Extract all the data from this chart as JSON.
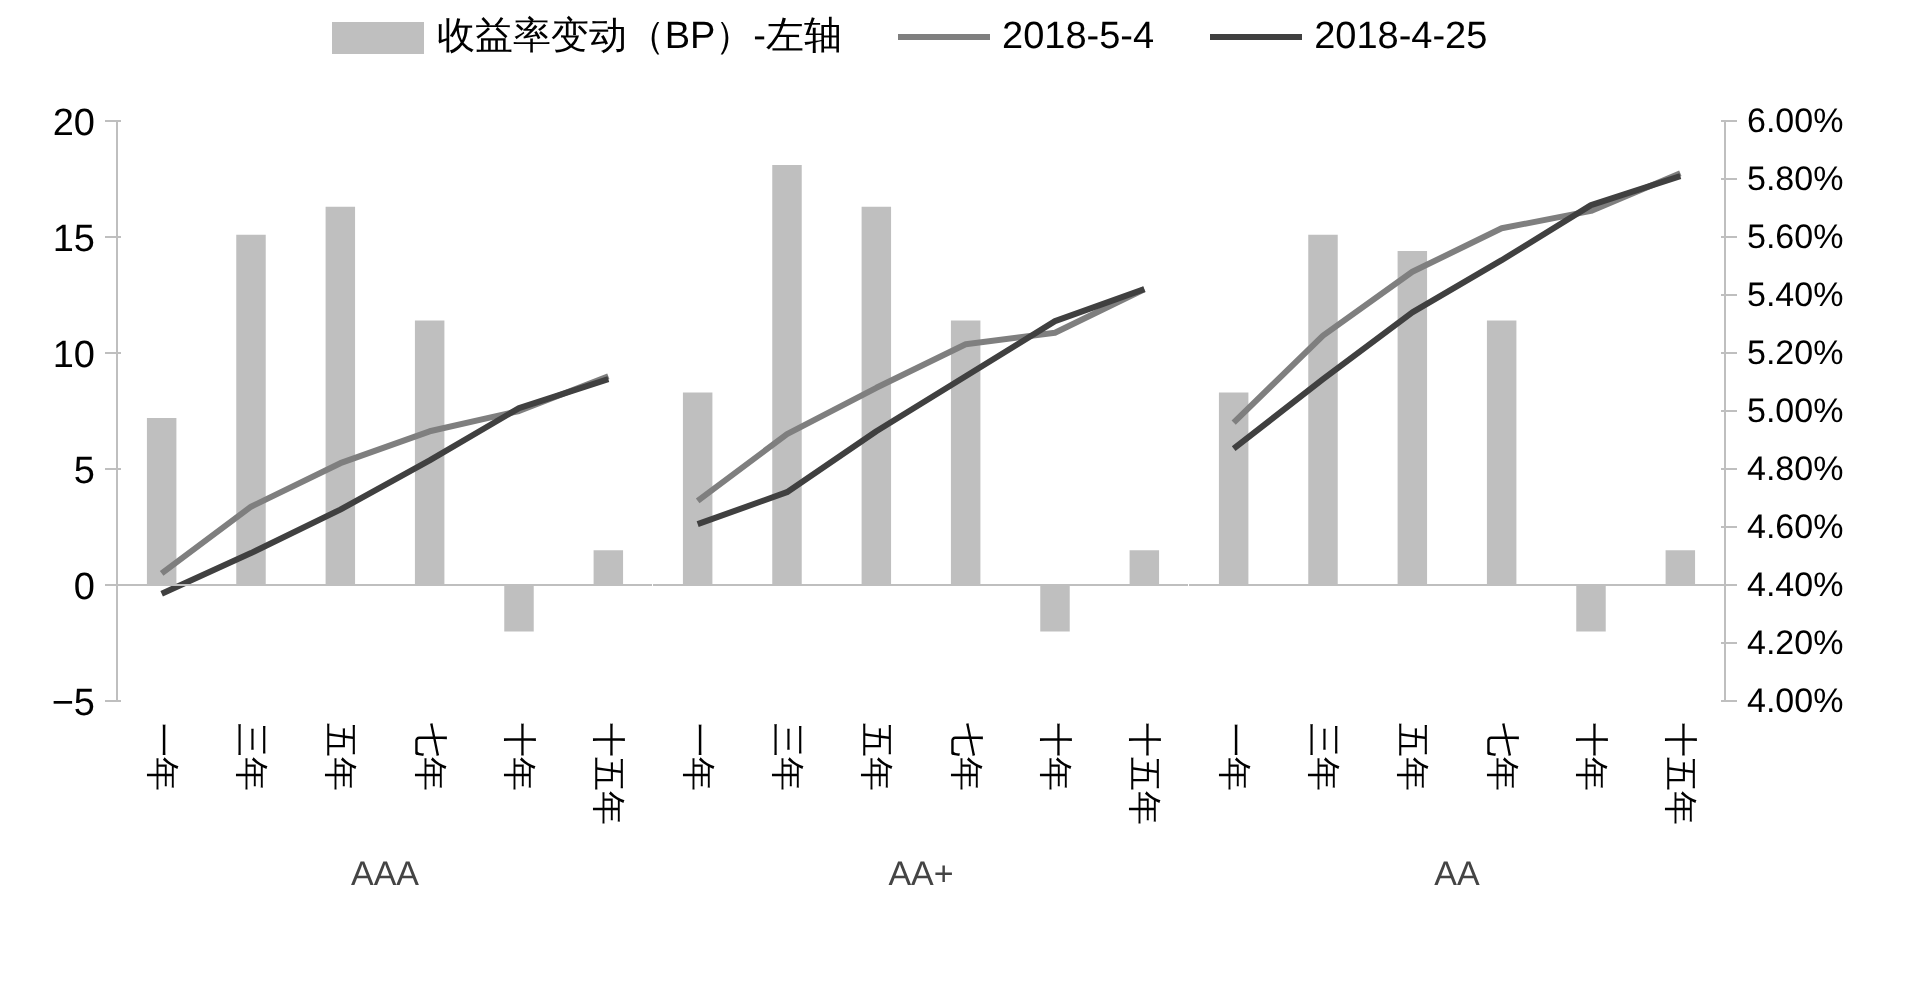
{
  "chart_data": [
    {
      "type": "bar",
      "categories": [
        "一年",
        "三年",
        "五年",
        "七年",
        "十年",
        "十五年"
      ],
      "xlabel": "AAA",
      "ylim": [
        -5,
        20
      ],
      "yticks": [
        -5,
        0,
        5,
        10,
        15,
        20
      ],
      "y2lim": [
        4,
        6
      ],
      "tick_labels": "y",
      "legend": false,
      "series": [
        {
          "color": "#bfbfbf",
          "values": [
            7.2,
            15.1,
            16.3,
            11.4,
            -2,
            1.5
          ]
        },
        {
          "type": "line",
          "axis": "y2",
          "color": "#7f7f7f",
          "values": [
            4.44,
            4.67,
            4.82,
            4.93,
            5.0,
            5.12
          ]
        },
        {
          "type": "line",
          "axis": "y2",
          "color": "#404040",
          "values": [
            4.37,
            4.51,
            4.66,
            4.83,
            5.01,
            5.11
          ]
        }
      ]
    },
    {
      "type": "bar",
      "categories": [
        "一年",
        "三年",
        "五年",
        "七年",
        "十年",
        "十五年"
      ],
      "xlabel": "AA+",
      "ylim": [
        -5,
        20
      ],
      "y2lim": [
        4,
        6
      ],
      "tick_labels": false,
      "legend": "top",
      "series": [
        {
          "name": "收益率变动（BP）-左轴",
          "color": "#bfbfbf",
          "values": [
            8.3,
            18.1,
            16.3,
            11.4,
            -2,
            1.5
          ]
        },
        {
          "type": "line",
          "name": "2018-5-4",
          "axis": "y2",
          "color": "#7f7f7f",
          "values": [
            4.69,
            4.92,
            5.08,
            5.23,
            5.27,
            5.42
          ]
        },
        {
          "type": "line",
          "name": "2018-4-25",
          "axis": "y2",
          "color": "#404040",
          "values": [
            4.61,
            4.72,
            4.93,
            5.12,
            5.31,
            5.42
          ]
        }
      ]
    },
    {
      "type": "bar",
      "categories": [
        "一年",
        "三年",
        "五年",
        "七年",
        "十年",
        "十五年"
      ],
      "xlabel": "AA",
      "ylim": [
        -5,
        20
      ],
      "y2lim": [
        4,
        6
      ],
      "y2ticks": [
        {
          "value": 4.0,
          "label": "4.00%"
        },
        {
          "value": 4.2,
          "label": "4.20%"
        },
        {
          "value": 4.4,
          "label": "4.40%"
        },
        {
          "value": 4.6,
          "label": "4.60%"
        },
        {
          "value": 4.8,
          "label": "4.80%"
        },
        {
          "value": 5.0,
          "label": "5.00%"
        },
        {
          "value": 5.2,
          "label": "5.20%"
        },
        {
          "value": 5.4,
          "label": "5.40%"
        },
        {
          "value": 5.6,
          "label": "5.60%"
        },
        {
          "value": 5.8,
          "label": "5.80%"
        },
        {
          "value": 6.0,
          "label": "6.00%"
        }
      ],
      "tick_labels": "y2",
      "legend": false,
      "series": [
        {
          "color": "#bfbfbf",
          "values": [
            8.3,
            15.1,
            14.4,
            11.4,
            -2,
            1.5
          ]
        },
        {
          "type": "line",
          "axis": "y2",
          "color": "#7f7f7f",
          "values": [
            4.96,
            5.26,
            5.48,
            5.63,
            5.69,
            5.82
          ]
        },
        {
          "type": "line",
          "axis": "y2",
          "color": "#404040",
          "values": [
            4.87,
            5.11,
            5.34,
            5.52,
            5.71,
            5.81
          ]
        }
      ]
    }
  ]
}
